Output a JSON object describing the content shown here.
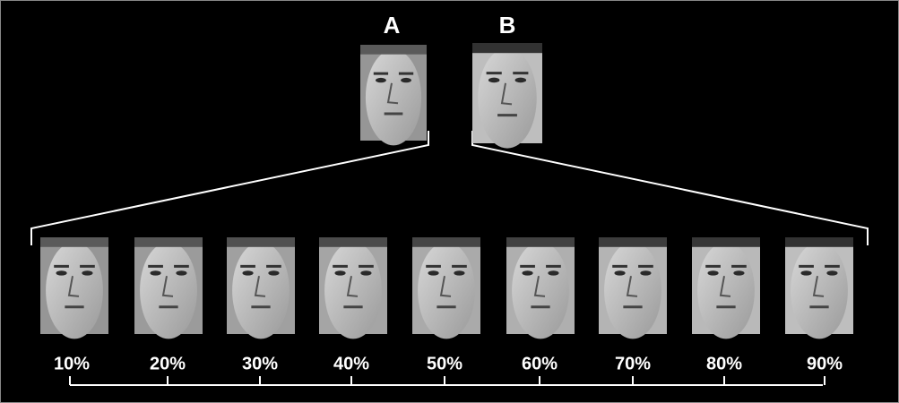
{
  "faces": {
    "a": {
      "label": "A"
    },
    "b": {
      "label": "B"
    }
  },
  "morphs": [
    {
      "label": "10%"
    },
    {
      "label": "20%"
    },
    {
      "label": "30%"
    },
    {
      "label": "40%"
    },
    {
      "label": "50%"
    },
    {
      "label": "60%"
    },
    {
      "label": "70%"
    },
    {
      "label": "80%"
    },
    {
      "label": "90%"
    }
  ]
}
